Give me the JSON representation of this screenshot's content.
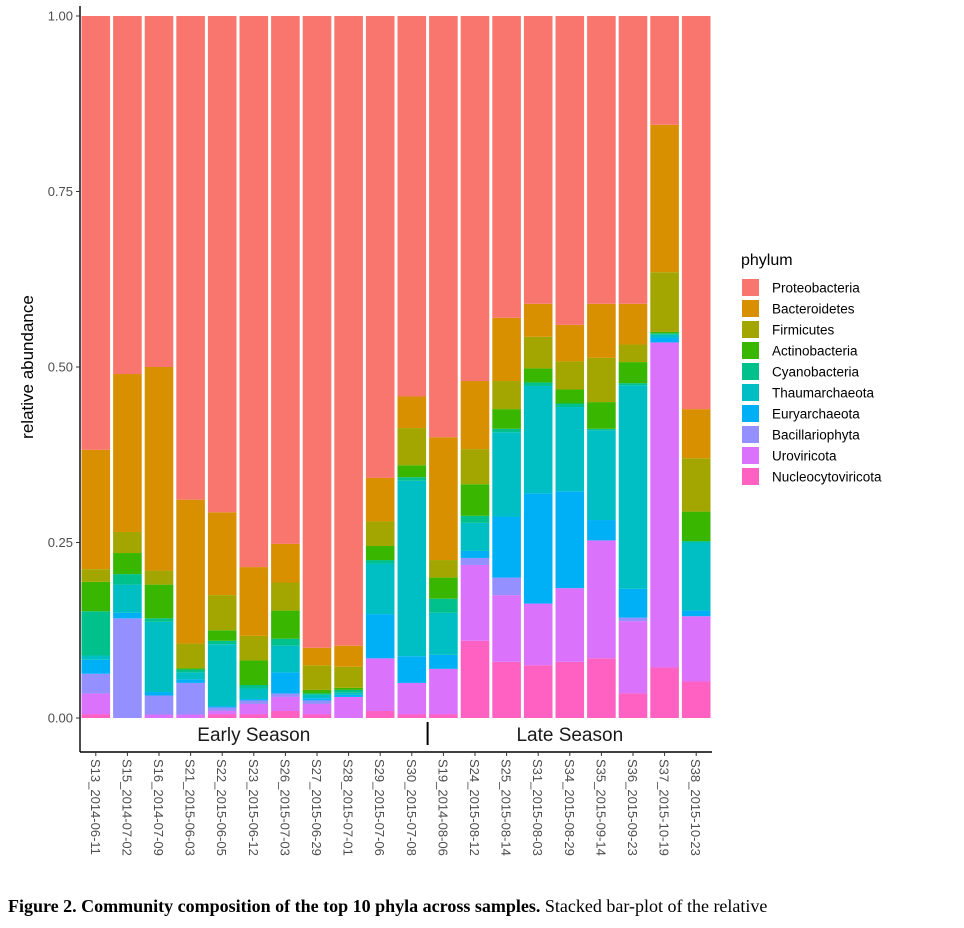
{
  "chart_data": {
    "type": "bar",
    "stacked": true,
    "ylabel": "relative abundance",
    "ylim": [
      0,
      1
    ],
    "yticks": [
      "0.00",
      "0.25",
      "0.50",
      "0.75",
      "1.00"
    ],
    "grid": false,
    "legend_position": "right",
    "legend_title": "phylum",
    "categories": [
      "S13_2014-06-11",
      "S15_2014-07-02",
      "S16_2014-07-09",
      "S21_2015-06-03",
      "S22_2015-06-05",
      "S23_2015-06-12",
      "S26_2015-07-03",
      "S27_2015-06-29",
      "S28_2015-07-01",
      "S29_2015-07-06",
      "S30_2015-07-08",
      "S19_2014-08-06",
      "S24_2015-08-12",
      "S25_2015-08-14",
      "S31_2015-08-03",
      "S34_2015-08-29",
      "S35_2015-09-14",
      "S36_2015-09-23",
      "S37_2015-10-19",
      "S38_2015-10-23"
    ],
    "groups": [
      {
        "label": "Early Season",
        "count": 11
      },
      {
        "label": "Late Season",
        "count": 9
      }
    ],
    "series": [
      {
        "name": "Nucleocytoviricota",
        "color": "#FF61C3",
        "values": [
          0.005,
          0.0,
          0.0,
          0.0,
          0.005,
          0.005,
          0.01,
          0.005,
          0.0,
          0.01,
          0.005,
          0.005,
          0.11,
          0.08,
          0.075,
          0.08,
          0.085,
          0.035,
          0.072,
          0.052
        ]
      },
      {
        "name": "Uroviricota",
        "color": "#DB72FB",
        "values": [
          0.03,
          0.0,
          0.005,
          0.005,
          0.005,
          0.015,
          0.02,
          0.015,
          0.03,
          0.075,
          0.045,
          0.065,
          0.108,
          0.095,
          0.088,
          0.105,
          0.168,
          0.103,
          0.463,
          0.093
        ]
      },
      {
        "name": "Bacillariophyta",
        "color": "#9590FF",
        "values": [
          0.028,
          0.142,
          0.027,
          0.045,
          0.005,
          0.005,
          0.005,
          0.005,
          0.0,
          0.0,
          0.0,
          0.0,
          0.01,
          0.025,
          0.0,
          0.0,
          0.0,
          0.005,
          0.0,
          0.0
        ]
      },
      {
        "name": "Euryarchaeota",
        "color": "#00B0F6",
        "values": [
          0.02,
          0.008,
          0.005,
          0.005,
          0.002,
          0.002,
          0.03,
          0.003,
          0.003,
          0.063,
          0.038,
          0.02,
          0.01,
          0.087,
          0.157,
          0.138,
          0.029,
          0.041,
          0.007,
          0.008
        ]
      },
      {
        "name": "Thaumarchaeota",
        "color": "#00BFC4",
        "values": [
          0.006,
          0.04,
          0.1,
          0.01,
          0.088,
          0.015,
          0.038,
          0.005,
          0.003,
          0.072,
          0.25,
          0.06,
          0.04,
          0.12,
          0.153,
          0.12,
          0.128,
          0.29,
          0.004,
          0.097
        ]
      },
      {
        "name": "Cyanobacteria",
        "color": "#00C08B",
        "values": [
          0.063,
          0.015,
          0.005,
          0.004,
          0.005,
          0.005,
          0.01,
          0.002,
          0.004,
          0.005,
          0.005,
          0.02,
          0.01,
          0.005,
          0.005,
          0.005,
          0.002,
          0.003,
          0.002,
          0.002
        ]
      },
      {
        "name": "Actinobacteria",
        "color": "#39B600",
        "values": [
          0.042,
          0.03,
          0.048,
          0.002,
          0.015,
          0.035,
          0.04,
          0.005,
          0.003,
          0.02,
          0.017,
          0.03,
          0.045,
          0.028,
          0.02,
          0.02,
          0.038,
          0.03,
          0.002,
          0.042
        ]
      },
      {
        "name": "Firmicutes",
        "color": "#A3A500",
        "values": [
          0.018,
          0.03,
          0.02,
          0.035,
          0.05,
          0.035,
          0.04,
          0.035,
          0.03,
          0.035,
          0.053,
          0.025,
          0.05,
          0.04,
          0.045,
          0.04,
          0.063,
          0.025,
          0.085,
          0.076
        ]
      },
      {
        "name": "Bacteroidetes",
        "color": "#D89000",
        "values": [
          0.17,
          0.225,
          0.29,
          0.205,
          0.118,
          0.098,
          0.055,
          0.025,
          0.03,
          0.062,
          0.045,
          0.175,
          0.097,
          0.09,
          0.047,
          0.052,
          0.077,
          0.058,
          0.21,
          0.07
        ]
      },
      {
        "name": "Proteobacteria",
        "color": "#F8766D",
        "values": [
          0.618,
          0.51,
          0.5,
          0.689,
          0.707,
          0.785,
          0.752,
          0.9,
          0.897,
          0.658,
          0.542,
          0.6,
          0.52,
          0.43,
          0.41,
          0.44,
          0.41,
          0.41,
          0.155,
          0.56
        ]
      }
    ]
  },
  "caption": {
    "bold": "Figure 2. Community composition of the top 10 phyla across samples.",
    "rest": " Stacked bar-plot of the relative"
  }
}
